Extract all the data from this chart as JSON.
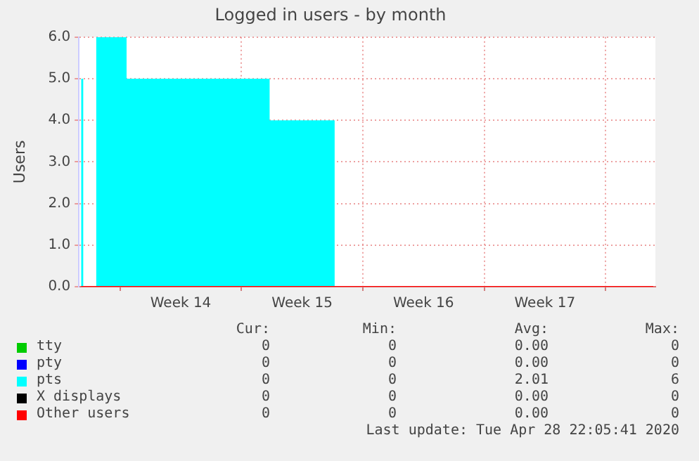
{
  "chart_data": {
    "type": "step",
    "title": "Logged in users - by month",
    "ylabel": "Users",
    "categories": [
      null,
      null,
      null,
      null,
      null,
      null,
      null,
      null,
      null,
      null,
      null,
      null,
      null,
      null,
      null,
      null,
      null,
      null,
      null,
      null,
      null,
      null,
      null,
      "Week 14",
      null,
      null,
      null,
      null,
      null,
      null,
      null,
      null,
      null,
      null,
      null,
      null,
      null,
      null,
      null,
      null,
      null,
      null,
      null,
      null,
      null,
      null,
      null,
      null,
      null,
      null,
      null,
      "Week 15",
      null,
      null,
      null,
      null,
      null,
      null,
      null,
      null,
      null,
      null,
      null,
      null,
      null,
      null,
      null,
      null,
      null,
      null,
      null,
      null,
      null,
      null,
      null,
      null,
      null,
      null,
      null,
      "Week 16",
      null,
      null,
      null,
      null,
      null,
      null,
      null,
      null,
      null,
      null,
      null,
      null,
      null,
      null,
      null,
      null,
      null,
      null,
      null,
      null,
      null,
      null,
      null,
      null,
      null,
      null,
      null,
      "Week 17",
      null,
      null,
      null,
      null,
      null,
      null,
      null,
      null,
      null,
      null,
      null,
      null,
      null,
      null,
      null,
      null,
      null,
      null,
      null,
      null,
      null,
      null,
      null,
      null,
      null
    ],
    "series": [
      {
        "name": "tty",
        "color": "#00cc00",
        "values": [
          null,
          null,
          null,
          null,
          null,
          null,
          null,
          null,
          null,
          null,
          null,
          null,
          null,
          null,
          null,
          null,
          null,
          null,
          null,
          null,
          null,
          null,
          null,
          null,
          null,
          null,
          null,
          null,
          null,
          null,
          null,
          null,
          null,
          null,
          null,
          null,
          null,
          null,
          null,
          null,
          null,
          null,
          null,
          null,
          null,
          null,
          null,
          null,
          null,
          null,
          null,
          null,
          null,
          null,
          null,
          null,
          null,
          null,
          null,
          null,
          null,
          null,
          null,
          null,
          null,
          null,
          null,
          null,
          null,
          null,
          null,
          null,
          null,
          null,
          null,
          null,
          null,
          null,
          null,
          null,
          null,
          null,
          null,
          null,
          null,
          null,
          null,
          null,
          null,
          null,
          null,
          null,
          null,
          null,
          null,
          null,
          null,
          null,
          null,
          null,
          null,
          null,
          null,
          null,
          null,
          null,
          null,
          null,
          null,
          null,
          null,
          null,
          null,
          null,
          null,
          null,
          null,
          null,
          null,
          null,
          null,
          null,
          null,
          null,
          null,
          null,
          null,
          null,
          null,
          null,
          null,
          null,
          null
        ]
      },
      {
        "name": "pty",
        "color": "#0000ff",
        "values": [
          null,
          null,
          null,
          null,
          null,
          null,
          null,
          null,
          null,
          null,
          null,
          null,
          null,
          null,
          null,
          null,
          null,
          null,
          null,
          null,
          null,
          null,
          null,
          null,
          null,
          null,
          null,
          null,
          null,
          null,
          null,
          null,
          null,
          null,
          null,
          null,
          null,
          null,
          null,
          null,
          null,
          null,
          null,
          null,
          null,
          null,
          null,
          null,
          null,
          null,
          null,
          null,
          null,
          null,
          null,
          null,
          null,
          null,
          null,
          null,
          null,
          null,
          null,
          null,
          null,
          null,
          null,
          null,
          null,
          null,
          null,
          null,
          null,
          null,
          null,
          null,
          null,
          null,
          null,
          null,
          null,
          null,
          null,
          null,
          null,
          null,
          null,
          null,
          null,
          null,
          null,
          null,
          null,
          null,
          null,
          null,
          null,
          null,
          null,
          null,
          null,
          null,
          null,
          null,
          null,
          null,
          null,
          null,
          null,
          null,
          null,
          null,
          null,
          null,
          null,
          null,
          null,
          null,
          null,
          null,
          null,
          null,
          null,
          null,
          null,
          null,
          null,
          null,
          null,
          null,
          null,
          null,
          null
        ]
      },
      {
        "name": "pts",
        "type": "area",
        "color": "#00ffff",
        "values": [
          5,
          0,
          0,
          0,
          6,
          6,
          6,
          6,
          6,
          6,
          6,
          5,
          5,
          5,
          5,
          5,
          5,
          5,
          5,
          5,
          5,
          5,
          5,
          5,
          5,
          5,
          5,
          5,
          5,
          5,
          5,
          5,
          5,
          5,
          5,
          5,
          5,
          5,
          5,
          5,
          5,
          5,
          5,
          5,
          4,
          4,
          4,
          4,
          4,
          4,
          4,
          4,
          4,
          4,
          4,
          4,
          4,
          4,
          4,
          0,
          0,
          0,
          0,
          0,
          0,
          0,
          0,
          0,
          0,
          0,
          0,
          0,
          0,
          0,
          0,
          0,
          0,
          0,
          0,
          0,
          0,
          0,
          0,
          0,
          0,
          0,
          0,
          0,
          0,
          0,
          0,
          0,
          0,
          0,
          0,
          0,
          0,
          0,
          0,
          0,
          0,
          0,
          0,
          0,
          0,
          0,
          0,
          0,
          0,
          0,
          0,
          0,
          0,
          0,
          0,
          0,
          0,
          0,
          0,
          0,
          0,
          0,
          0,
          0,
          0,
          0,
          0,
          0,
          0,
          0,
          0,
          0,
          0
        ]
      },
      {
        "name": "X displays",
        "color": "#000000",
        "values": [
          null,
          null,
          null,
          null,
          null,
          null,
          null,
          null,
          null,
          null,
          null,
          null,
          null,
          null,
          null,
          null,
          null,
          null,
          null,
          null,
          null,
          null,
          null,
          null,
          null,
          null,
          null,
          null,
          null,
          null,
          null,
          null,
          null,
          null,
          null,
          null,
          null,
          null,
          null,
          null,
          null,
          null,
          null,
          null,
          null,
          null,
          null,
          null,
          null,
          null,
          null,
          null,
          null,
          null,
          null,
          null,
          null,
          null,
          null,
          null,
          null,
          null,
          null,
          null,
          null,
          null,
          null,
          null,
          null,
          null,
          null,
          null,
          null,
          null,
          null,
          null,
          null,
          null,
          null,
          null,
          null,
          null,
          null,
          null,
          null,
          null,
          null,
          null,
          null,
          null,
          null,
          null,
          null,
          null,
          null,
          null,
          null,
          null,
          null,
          null,
          null,
          null,
          null,
          null,
          null,
          null,
          null,
          null,
          null,
          null,
          null,
          null,
          null,
          null,
          null,
          null,
          null,
          null,
          null,
          null,
          null,
          null,
          null,
          null,
          null,
          null,
          null,
          null,
          null,
          null,
          null,
          null,
          null
        ]
      },
      {
        "name": "Other users",
        "color": "#ff0000",
        "values": [
          0,
          0,
          0,
          0,
          0,
          0,
          0,
          0,
          0,
          0,
          0,
          0,
          0,
          0,
          0,
          0,
          0,
          0,
          0,
          0,
          0,
          0,
          0,
          0,
          0,
          0,
          0,
          0,
          0,
          0,
          0,
          0,
          0,
          0,
          0,
          0,
          0,
          0,
          0,
          0,
          0,
          0,
          0,
          0,
          0,
          0,
          0,
          0,
          0,
          0,
          0,
          0,
          0,
          0,
          0,
          0,
          0,
          0,
          0,
          0,
          0,
          0,
          0,
          0,
          0,
          0,
          0,
          0,
          0,
          0,
          0,
          0,
          0,
          0,
          0,
          0,
          0,
          0,
          0,
          0,
          0,
          0,
          0,
          0,
          0,
          0,
          0,
          0,
          0,
          0,
          0,
          0,
          0,
          0,
          0,
          0,
          0,
          0,
          0,
          0,
          0,
          0,
          0,
          0,
          0,
          0,
          0,
          0,
          0,
          0,
          0,
          0,
          0,
          0,
          0,
          0,
          0,
          0,
          0,
          0,
          0,
          0,
          0,
          0,
          0,
          0,
          0,
          0,
          0,
          0,
          0,
          0,
          0
        ]
      }
    ],
    "ylim": [
      0,
      6
    ],
    "yticks": [
      {
        "value": 0,
        "label": "0.0"
      },
      {
        "value": 1,
        "label": "1.0"
      },
      {
        "value": 2,
        "label": "2.0"
      },
      {
        "value": 3,
        "label": "3.0"
      },
      {
        "value": 4,
        "label": "4.0"
      },
      {
        "value": 5,
        "label": "5.0"
      },
      {
        "value": 6,
        "label": "6.0"
      }
    ],
    "grid": true,
    "legend": "bottom",
    "marker": "none",
    "annotations": [
      "Cur:",
      "Min:",
      "Avg:",
      "Max:",
      "0",
      "0",
      "0.00",
      "0",
      "0",
      "0",
      "0.00",
      "0",
      "0",
      "0",
      "2.01",
      "6",
      "0",
      "0",
      "0.00",
      "0",
      "0",
      "0",
      "0.00",
      "0",
      "Last update: Tue Apr 28 22:05:41 2020"
    ]
  }
}
